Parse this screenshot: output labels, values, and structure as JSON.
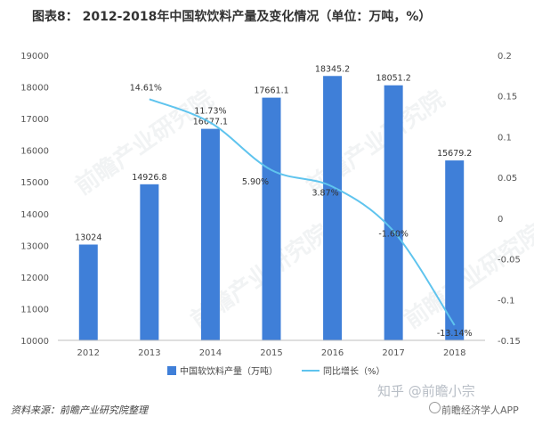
{
  "title": "图表8：  2012-2018年中国软饮料产量及变化情况（单位：万吨，%）",
  "source": "资料来源：前瞻产业研究院整理",
  "watermarks": {
    "bottom_main": "知乎  @前瞻小宗",
    "bottom_sub": "前瞻经济学人APP",
    "diagonal": "前瞻产业研究院"
  },
  "colors": {
    "bar": "#3f7fd8",
    "line": "#5fc4ee",
    "axis_text": "#555555",
    "grid": "#d9d9d9"
  },
  "chart_data": {
    "type": "bar",
    "categories": [
      "2012",
      "2013",
      "2014",
      "2015",
      "2016",
      "2017",
      "2018"
    ],
    "series": [
      {
        "name": "中国软饮料产量（万吨）",
        "type": "bar",
        "axis": "left",
        "values": [
          13024,
          14926.8,
          16677.1,
          17661.1,
          18345.2,
          18051.2,
          15679.2
        ],
        "labels": [
          "13024",
          "14926.8",
          "16677.1",
          "17661.1",
          "18345.2",
          "18051.2",
          "15679.2"
        ]
      },
      {
        "name": "同比增长（%）",
        "type": "line",
        "axis": "right",
        "x": [
          "2013",
          "2014",
          "2015",
          "2016",
          "2017",
          "2018"
        ],
        "values": [
          0.1461,
          0.1173,
          0.059,
          0.0387,
          -0.016,
          -0.1314
        ],
        "labels": [
          "14.61%",
          "11.73%",
          "5.90%",
          "3.87%",
          "-1.60%",
          "-13.14%"
        ]
      }
    ],
    "y_left": {
      "min": 10000,
      "max": 19000,
      "ticks": [
        "10000",
        "11000",
        "12000",
        "13000",
        "14000",
        "15000",
        "16000",
        "17000",
        "18000",
        "19000"
      ]
    },
    "y_right": {
      "min": -0.15,
      "max": 0.2,
      "ticks": [
        "-0.15",
        "-0.1",
        "-0.05",
        "0",
        "0.05",
        "0.1",
        "0.15",
        "0.2"
      ]
    },
    "grid": false,
    "legend_position": "bottom"
  }
}
